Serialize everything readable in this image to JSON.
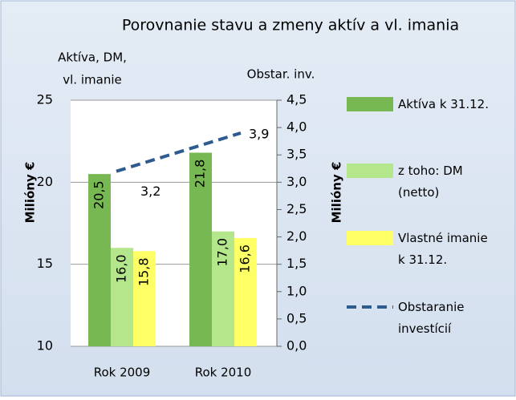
{
  "chart_data": {
    "type": "bar_line",
    "title": "Porovnanie stavu a zmeny aktív a vl. imania",
    "y_title_top": [
      "Aktíva, DM,",
      "vl. imanie"
    ],
    "y2_title_top": "Obstar. inv.",
    "y_label": "Milióny €",
    "y2_label": "Milióny €",
    "categories": [
      "Rok 2009",
      "Rok 2010"
    ],
    "ylim": [
      10,
      25
    ],
    "yticks": [
      10,
      15,
      20,
      25
    ],
    "y2lim": [
      0,
      4.5
    ],
    "y2ticks": [
      {
        "value": 0,
        "label": "0,0"
      },
      {
        "value": 0.5,
        "label": "0,5"
      },
      {
        "value": 1,
        "label": "1,0"
      },
      {
        "value": 1.5,
        "label": "1,5"
      },
      {
        "value": 2,
        "label": "2,0"
      },
      {
        "value": 2.5,
        "label": "2,5"
      },
      {
        "value": 3,
        "label": "3,0"
      },
      {
        "value": 3.5,
        "label": "3,5"
      },
      {
        "value": 4,
        "label": "4,0"
      },
      {
        "value": 4.5,
        "label": "4,5"
      }
    ],
    "grid": true,
    "legend": "right",
    "series": [
      {
        "name": "Aktíva k 31.12.",
        "color": "#77b852",
        "type": "bar",
        "values": [
          20.5,
          21.8
        ],
        "value_labels": [
          "20,5",
          "21,8"
        ]
      },
      {
        "name": "z toho: DM\n(netto)",
        "color": "#b4e68c",
        "type": "bar",
        "values": [
          16.0,
          17.0
        ],
        "value_labels": [
          "16,0",
          "17,0"
        ]
      },
      {
        "name": "Vlastné imanie\nk 31.12.",
        "color": "#ffff66",
        "type": "bar",
        "values": [
          15.8,
          16.6
        ],
        "value_labels": [
          "15,8",
          "16,6"
        ]
      },
      {
        "name": "Obstaranie\ninvestícií",
        "color": "#2e5b8e",
        "type": "line",
        "axis": "y2",
        "values": [
          3.2,
          3.9
        ],
        "value_labels": [
          "3,2",
          "3,9"
        ]
      }
    ]
  }
}
